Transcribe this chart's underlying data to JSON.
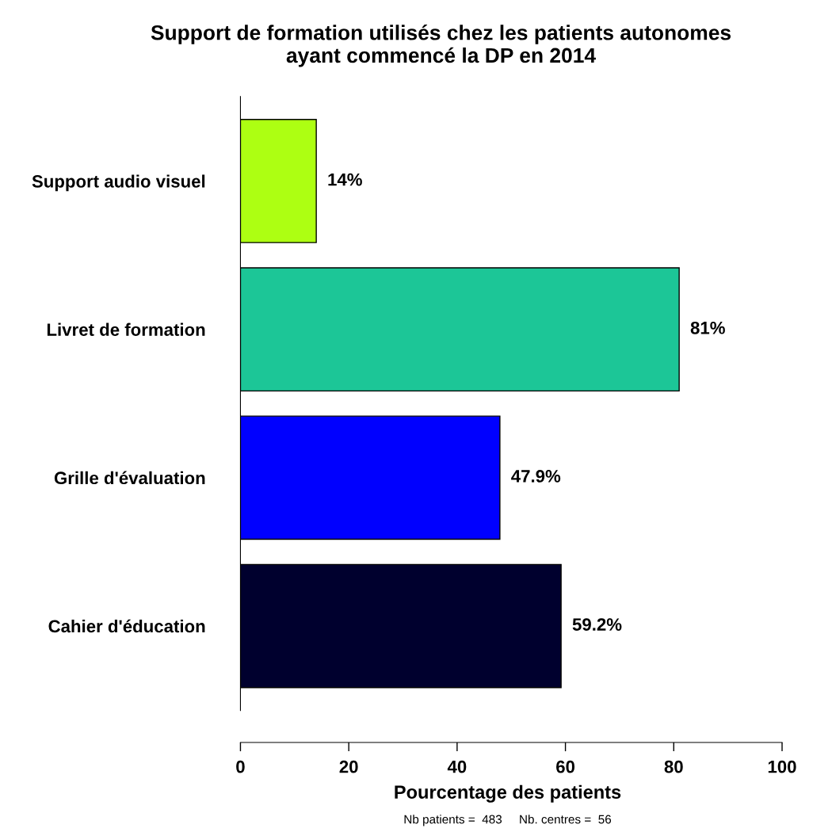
{
  "chart_data": {
    "type": "bar",
    "orientation": "horizontal",
    "title": "Support de formation utilisés chez les patients autonomes\nayant commencé la DP en 2014",
    "xlabel": "Pourcentage des patients",
    "categories": [
      "Support audio visuel",
      "Livret de formation",
      "Grille d'évaluation",
      "Cahier d'éducation"
    ],
    "values": [
      14,
      81,
      47.9,
      59.2
    ],
    "value_labels": [
      "14%",
      "81%",
      "47.9%",
      "59.2%"
    ],
    "colors": [
      "#adff12",
      "#1cc697",
      "#0000ff",
      "#00002e"
    ],
    "xlim": [
      0,
      100
    ],
    "xticks": [
      0,
      20,
      40,
      60,
      80,
      100
    ],
    "grid": false,
    "legend": false,
    "annotations": [
      "Nb patients =  483     Nb. centres =  56"
    ]
  }
}
